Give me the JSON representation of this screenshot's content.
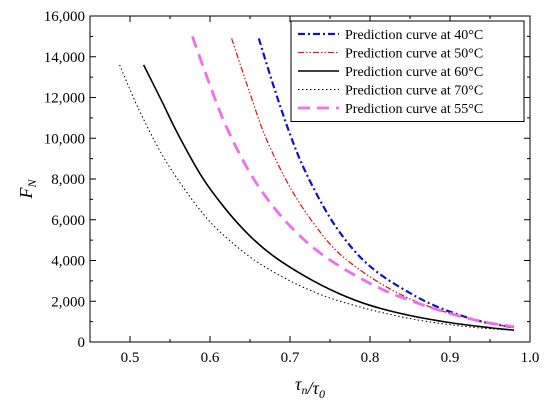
{
  "chart_data": {
    "type": "line",
    "xlabel": "τn/τ0",
    "ylabel": "FN",
    "xlim": [
      0.45,
      1.0
    ],
    "ylim": [
      0,
      16000
    ],
    "xticks": [
      0.5,
      0.6,
      0.7,
      0.8,
      0.9,
      1.0
    ],
    "xtick_labels": [
      "0.5",
      "0.6",
      "0.7",
      "0.8",
      "0.9",
      "1.0"
    ],
    "yticks": [
      0,
      2000,
      4000,
      6000,
      8000,
      10000,
      12000,
      14000,
      16000
    ],
    "ytick_labels": [
      "0",
      "2,000",
      "4,000",
      "6,000",
      "8,000",
      "10,000",
      "12,000",
      "14,000",
      "16,000"
    ],
    "grid": false,
    "legend_position": "top-right",
    "series": [
      {
        "name": "Prediction curve at 40°C",
        "color": "#1010c8",
        "dash": "dashdot",
        "x": [
          0.661,
          0.68,
          0.7,
          0.72,
          0.75,
          0.78,
          0.81,
          0.85,
          0.88,
          0.91,
          0.94,
          0.97,
          0.98
        ],
        "y": [
          14900,
          12500,
          10200,
          8300,
          6100,
          4500,
          3400,
          2400,
          1800,
          1350,
          1000,
          780,
          700
        ]
      },
      {
        "name": "Prediction curve at 50°C",
        "color": "#d42020",
        "dash": "dashdotdot",
        "x": [
          0.627,
          0.65,
          0.67,
          0.7,
          0.73,
          0.76,
          0.8,
          0.84,
          0.88,
          0.92,
          0.95,
          0.98
        ],
        "y": [
          14900,
          12200,
          10000,
          7600,
          5800,
          4400,
          3200,
          2300,
          1650,
          1200,
          920,
          700
        ]
      },
      {
        "name": "Prediction curve at 60°C",
        "color": "#000000",
        "dash": "solid",
        "x": [
          0.517,
          0.54,
          0.56,
          0.59,
          0.62,
          0.65,
          0.68,
          0.72,
          0.76,
          0.8,
          0.85,
          0.9,
          0.95,
          0.98
        ],
        "y": [
          13600,
          11800,
          10200,
          8100,
          6500,
          5200,
          4200,
          3200,
          2400,
          1800,
          1300,
          950,
          700,
          580
        ]
      },
      {
        "name": "Prediction curve at 70°C",
        "color": "#000000",
        "dash": "dotted",
        "x": [
          0.487,
          0.51,
          0.54,
          0.57,
          0.6,
          0.63,
          0.66,
          0.7,
          0.74,
          0.78,
          0.82,
          0.86,
          0.9,
          0.94,
          0.98
        ],
        "y": [
          13600,
          11500,
          9200,
          7400,
          5900,
          4800,
          3900,
          3000,
          2300,
          1800,
          1400,
          1080,
          850,
          680,
          580
        ]
      },
      {
        "name": "Prediction curve at 55°C",
        "color": "#ee6eee",
        "dash": "dashed",
        "x": [
          0.578,
          0.6,
          0.62,
          0.65,
          0.68,
          0.71,
          0.74,
          0.78,
          0.82,
          0.86,
          0.9,
          0.94,
          0.98
        ],
        "y": [
          15000,
          12600,
          10600,
          8300,
          6600,
          5300,
          4300,
          3300,
          2500,
          1900,
          1400,
          1000,
          750
        ]
      }
    ]
  }
}
